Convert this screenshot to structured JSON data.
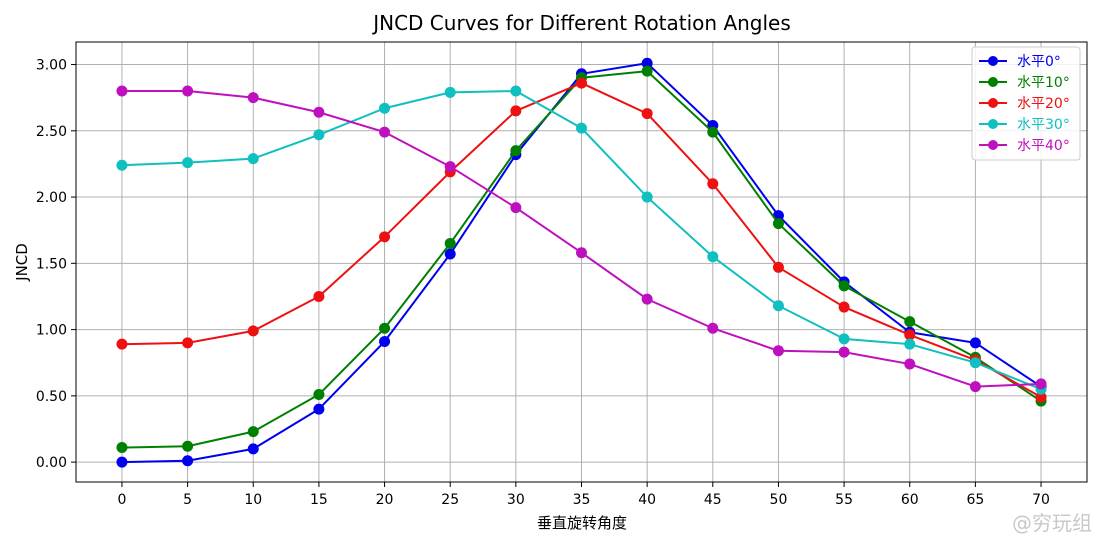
{
  "chart_data": {
    "type": "line",
    "title": "JNCD Curves for Different Rotation Angles",
    "xlabel": "垂直旋转角度",
    "ylabel": "JNCD",
    "x": [
      0,
      5,
      10,
      15,
      20,
      25,
      30,
      35,
      40,
      45,
      50,
      55,
      60,
      65,
      70
    ],
    "xlim": [
      -3.5,
      73.5
    ],
    "ylim": [
      -0.15,
      3.17
    ],
    "yticks": [
      0.0,
      0.5,
      1.0,
      1.5,
      2.0,
      2.5,
      3.0
    ],
    "ytick_labels": [
      "0.00",
      "0.50",
      "1.00",
      "1.50",
      "2.00",
      "2.50",
      "3.00"
    ],
    "xtick_labels": [
      "0",
      "5",
      "10",
      "15",
      "20",
      "25",
      "30",
      "35",
      "40",
      "45",
      "50",
      "55",
      "60",
      "65",
      "70"
    ],
    "grid": true,
    "legend_position": "top-right",
    "series": [
      {
        "name": "水平0°",
        "color": "#0000ee",
        "values": [
          0.0,
          0.01,
          0.1,
          0.4,
          0.91,
          1.57,
          2.32,
          2.93,
          3.01,
          2.54,
          1.86,
          1.36,
          0.98,
          0.9,
          0.57
        ]
      },
      {
        "name": "水平10°",
        "color": "#008000",
        "values": [
          0.11,
          0.12,
          0.23,
          0.51,
          1.01,
          1.65,
          2.35,
          2.9,
          2.95,
          2.49,
          1.8,
          1.33,
          1.06,
          0.79,
          0.46
        ]
      },
      {
        "name": "水平20°",
        "color": "#ee1111",
        "values": [
          0.89,
          0.9,
          0.99,
          1.25,
          1.7,
          2.19,
          2.65,
          2.86,
          2.63,
          2.1,
          1.47,
          1.17,
          0.96,
          0.77,
          0.49
        ]
      },
      {
        "name": "水平30°",
        "color": "#10bfbf",
        "values": [
          2.24,
          2.26,
          2.29,
          2.47,
          2.67,
          2.79,
          2.8,
          2.52,
          2.0,
          1.55,
          1.18,
          0.93,
          0.89,
          0.75,
          0.55
        ]
      },
      {
        "name": "水平40°",
        "color": "#bf10bf",
        "values": [
          2.8,
          2.8,
          2.75,
          2.64,
          2.49,
          2.23,
          1.92,
          1.58,
          1.23,
          1.01,
          0.84,
          0.83,
          0.74,
          0.57,
          0.59
        ]
      }
    ]
  },
  "watermark": "@穷玩组"
}
